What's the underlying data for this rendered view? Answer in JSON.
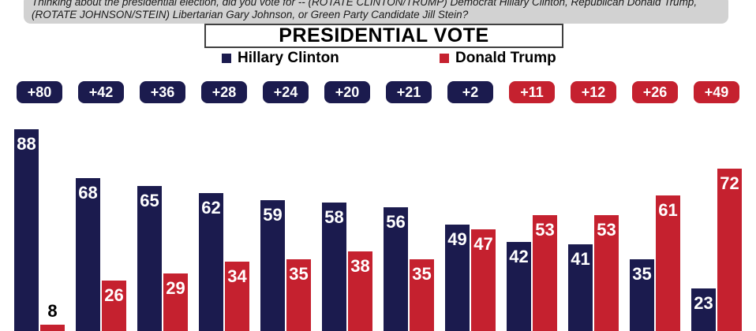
{
  "question": {
    "line1": "Thinking about the presidential election, did you vote for -- (ROTATE CLINTON/TRUMP) Democrat Hillary Clinton, Republican Donald Trump,",
    "line2": "(ROTATE JOHNSON/STEIN) Libertarian Gary Johnson, or Green Party Candidate Jill Stein?"
  },
  "title": {
    "text": "PRESIDENTIAL VOTE"
  },
  "legend": {
    "items": [
      {
        "label": "Hillary Clinton",
        "color": "#1b1b4e"
      },
      {
        "label": "Donald Trump",
        "color": "#c5212f"
      }
    ]
  },
  "colors": {
    "clinton": "#1b1b4e",
    "trump": "#c5212f",
    "value_label_inside": "#ffffff",
    "value_label_outside": "#000000",
    "question_bg": "#d2d2d2",
    "title_border": "#404040"
  },
  "chart_data": {
    "type": "bar",
    "title": "PRESIDENTIAL VOTE",
    "xlabel": "",
    "ylabel": "",
    "legend_position": "top",
    "grid": false,
    "axes_visible": false,
    "value_labels_on_bars": true,
    "bottom_of_bars_cropped": true,
    "series": [
      {
        "name": "Hillary Clinton",
        "color": "#1b1b4e",
        "values": [
          88,
          68,
          65,
          62,
          59,
          58,
          56,
          49,
          42,
          41,
          35,
          23
        ]
      },
      {
        "name": "Donald Trump",
        "color": "#c5212f",
        "values": [
          8,
          26,
          29,
          34,
          35,
          38,
          35,
          47,
          53,
          53,
          61,
          72
        ]
      }
    ],
    "margin_badges": [
      {
        "label": "+80",
        "party": "clinton"
      },
      {
        "label": "+42",
        "party": "clinton"
      },
      {
        "label": "+36",
        "party": "clinton"
      },
      {
        "label": "+28",
        "party": "clinton"
      },
      {
        "label": "+24",
        "party": "clinton"
      },
      {
        "label": "+20",
        "party": "clinton"
      },
      {
        "label": "+21",
        "party": "clinton"
      },
      {
        "label": "+2",
        "party": "clinton"
      },
      {
        "label": "+11",
        "party": "trump"
      },
      {
        "label": "+12",
        "party": "trump"
      },
      {
        "label": "+26",
        "party": "trump"
      },
      {
        "label": "+49",
        "party": "trump"
      }
    ]
  }
}
